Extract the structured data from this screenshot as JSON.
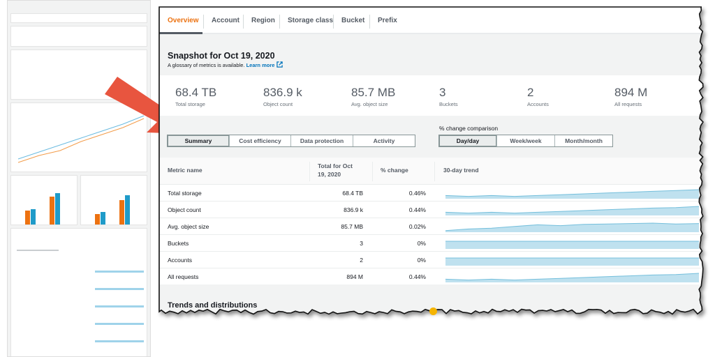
{
  "colors": {
    "accent": "#ec7211",
    "link": "#0073bb",
    "sparkline": "#74bfdc",
    "sparkline_fill": "#bfe1ef",
    "arrow": "#e8553f",
    "dot": "#f5b400"
  },
  "tabs": [
    {
      "label": "Overview",
      "active": true
    },
    {
      "label": "Account"
    },
    {
      "label": "Region"
    },
    {
      "label": "Storage class"
    },
    {
      "label": "Bucket"
    },
    {
      "label": "Prefix"
    }
  ],
  "snapshot": {
    "title": "Snapshot for Oct 19, 2020",
    "glossary": "A glossary of metrics is available.",
    "learn_more": "Learn more",
    "external_icon": "external-link-icon"
  },
  "metrics": [
    {
      "value": "68.4 TB",
      "label": "Total storage"
    },
    {
      "value": "836.9 k",
      "label": "Object count"
    },
    {
      "value": "85.7 MB",
      "label": "Avg. object size"
    },
    {
      "value": "3",
      "label": "Buckets"
    },
    {
      "value": "2",
      "label": "Accounts"
    },
    {
      "value": "894 M",
      "label": "All requests"
    }
  ],
  "views": [
    {
      "label": "Summary",
      "selected": true
    },
    {
      "label": "Cost efficiency"
    },
    {
      "label": "Data protection"
    },
    {
      "label": "Activity"
    }
  ],
  "comparison": {
    "label": "% change comparison",
    "options": [
      {
        "label": "Day/day",
        "selected": true
      },
      {
        "label": "Week/week"
      },
      {
        "label": "Month/month"
      }
    ]
  },
  "table": {
    "headers": {
      "metric": "Metric name",
      "total_line1": "Total for Oct",
      "total_line2": "19, 2020",
      "change": "% change",
      "trend": "30-day trend"
    },
    "rows": [
      {
        "name": "Total storage",
        "total": "68.4 TB",
        "change": "0.46%",
        "trend": [
          0.3,
          0.2,
          0.3,
          0.2,
          0.3,
          0.4,
          0.5,
          0.6,
          0.7,
          0.8,
          0.9,
          1.0
        ]
      },
      {
        "name": "Object count",
        "total": "836.9 k",
        "change": "0.44%",
        "trend": [
          0.3,
          0.2,
          0.3,
          0.2,
          0.3,
          0.4,
          0.5,
          0.6,
          0.7,
          0.8,
          0.85,
          1.0
        ]
      },
      {
        "name": "Avg. object size",
        "total": "85.7 MB",
        "change": "0.02%",
        "trend": [
          0.1,
          0.3,
          0.4,
          0.6,
          0.8,
          0.7,
          0.85,
          0.9,
          0.95,
          1.0,
          0.9,
          0.95
        ]
      },
      {
        "name": "Buckets",
        "total": "3",
        "change": "0%",
        "trend": [
          0.5,
          0.5,
          0.5,
          0.5,
          0.5,
          0.5,
          0.5,
          0.5,
          0.5,
          0.5,
          0.5,
          0.5
        ]
      },
      {
        "name": "Accounts",
        "total": "2",
        "change": "0%",
        "trend": [
          0.5,
          0.5,
          0.5,
          0.5,
          0.5,
          0.5,
          0.5,
          0.5,
          0.5,
          0.5,
          0.5,
          0.5
        ]
      },
      {
        "name": "All requests",
        "total": "894 M",
        "change": "0.44%",
        "trend": [
          0.3,
          0.2,
          0.3,
          0.2,
          0.3,
          0.4,
          0.5,
          0.6,
          0.7,
          0.8,
          0.85,
          1.0
        ]
      }
    ]
  },
  "trends_title": "Trends and distributions"
}
